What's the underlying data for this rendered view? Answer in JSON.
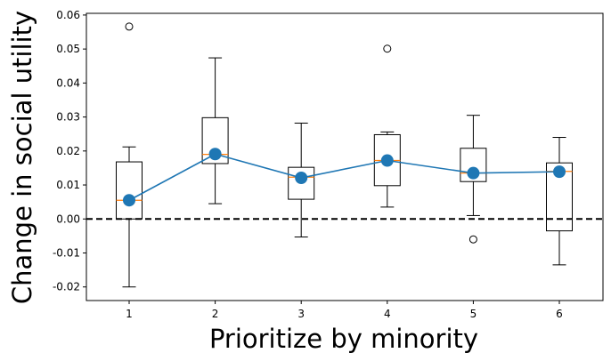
{
  "chart_data": {
    "type": "box",
    "xlabel": "Prioritize by minority",
    "ylabel": "Change in social utility",
    "categories": [
      "1",
      "2",
      "3",
      "4",
      "5",
      "6"
    ],
    "ylim": [
      -0.024,
      0.0605
    ],
    "yticks": [
      -0.02,
      -0.01,
      0.0,
      0.01,
      0.02,
      0.03,
      0.04,
      0.05,
      0.06
    ],
    "ytick_labels": [
      "-0.02",
      "-0.01",
      "0.00",
      "0.01",
      "0.02",
      "0.03",
      "0.04",
      "0.05",
      "0.06"
    ],
    "reference_line": {
      "y": 0.0,
      "style": "dashed",
      "color": "#000000"
    },
    "boxes": [
      {
        "category": "1",
        "whislo": -0.02,
        "q1": 0.0,
        "med": 0.0055,
        "q3": 0.0168,
        "whishi": 0.0212,
        "fliers": [
          0.0566
        ]
      },
      {
        "category": "2",
        "whislo": 0.0045,
        "q1": 0.0163,
        "med": 0.019,
        "q3": 0.0298,
        "whishi": 0.0474,
        "fliers": []
      },
      {
        "category": "3",
        "whislo": -0.0053,
        "q1": 0.0058,
        "med": 0.0123,
        "q3": 0.0152,
        "whishi": 0.0282,
        "fliers": []
      },
      {
        "category": "4",
        "whislo": 0.0035,
        "q1": 0.0098,
        "med": 0.0172,
        "q3": 0.0248,
        "whishi": 0.0256,
        "fliers": [
          0.0501
        ]
      },
      {
        "category": "5",
        "whislo": 0.001,
        "q1": 0.011,
        "med": 0.0135,
        "q3": 0.0208,
        "whishi": 0.0305,
        "fliers": [
          -0.006
        ]
      },
      {
        "category": "6",
        "whislo": -0.0135,
        "q1": -0.0035,
        "med": 0.014,
        "q3": 0.0165,
        "whishi": 0.024,
        "fliers": []
      }
    ],
    "mean_series": {
      "values": [
        0.0055,
        0.0191,
        0.0121,
        0.0172,
        0.0135,
        0.0139
      ],
      "color": "#1f77b4"
    },
    "median_color": "#ff7f0e",
    "grid": false
  }
}
